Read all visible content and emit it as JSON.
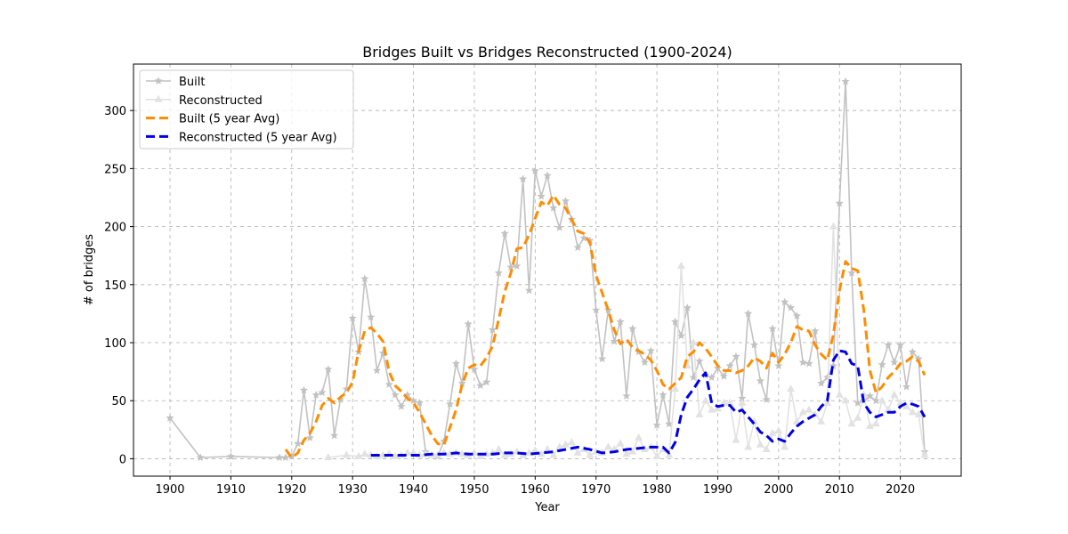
{
  "chart_data": {
    "type": "line",
    "title": "Bridges Built vs Bridges Reconstructed (1900-2024)",
    "xlabel": "Year",
    "ylabel": "# of bridges",
    "xlim": [
      1894,
      2030
    ],
    "ylim": [
      -15,
      340
    ],
    "xticks": [
      1900,
      1910,
      1920,
      1930,
      1940,
      1950,
      1960,
      1970,
      1980,
      1990,
      2000,
      2010,
      2020
    ],
    "yticks": [
      0,
      50,
      100,
      150,
      200,
      250,
      300
    ],
    "grid": true,
    "legend_position": "top-left",
    "series": [
      {
        "name": "Built",
        "style": "solid",
        "marker": "star",
        "color": "#c2c2c2",
        "x": [
          1900,
          1905,
          1910,
          1918,
          1919,
          1920,
          1921,
          1922,
          1923,
          1924,
          1925,
          1926,
          1927,
          1928,
          1929,
          1930,
          1931,
          1932,
          1933,
          1934,
          1935,
          1936,
          1937,
          1938,
          1939,
          1940,
          1941,
          1942,
          1943,
          1944,
          1945,
          1946,
          1947,
          1948,
          1949,
          1950,
          1951,
          1952,
          1953,
          1954,
          1955,
          1956,
          1957,
          1958,
          1959,
          1960,
          1961,
          1962,
          1963,
          1964,
          1965,
          1966,
          1967,
          1968,
          1969,
          1970,
          1971,
          1972,
          1973,
          1974,
          1975,
          1976,
          1977,
          1978,
          1979,
          1980,
          1981,
          1982,
          1983,
          1984,
          1985,
          1986,
          1987,
          1988,
          1989,
          1990,
          1991,
          1992,
          1993,
          1994,
          1995,
          1996,
          1997,
          1998,
          1999,
          2000,
          2001,
          2002,
          2003,
          2004,
          2005,
          2006,
          2007,
          2008,
          2009,
          2010,
          2011,
          2012,
          2013,
          2014,
          2015,
          2016,
          2017,
          2018,
          2019,
          2020,
          2021,
          2022,
          2023,
          2024
        ],
        "y": [
          35,
          1,
          2,
          1,
          1,
          2,
          13,
          59,
          18,
          55,
          57,
          77,
          20,
          51,
          60,
          121,
          92,
          155,
          122,
          76,
          91,
          64,
          55,
          45,
          55,
          50,
          48,
          6,
          3,
          2,
          15,
          47,
          82,
          65,
          116,
          77,
          63,
          66,
          111,
          160,
          194,
          165,
          166,
          241,
          145,
          248,
          226,
          244,
          216,
          199,
          222,
          206,
          182,
          190,
          188,
          128,
          86,
          128,
          101,
          118,
          54,
          112,
          92,
          83,
          93,
          29,
          55,
          30,
          118,
          106,
          130,
          70,
          84,
          72,
          70,
          78,
          71,
          80,
          88,
          52,
          125,
          98,
          67,
          51,
          112,
          80,
          135,
          130,
          123,
          83,
          82,
          110,
          65,
          70,
          80,
          220,
          325,
          160,
          48,
          50,
          54,
          50,
          81,
          98,
          83,
          98,
          62,
          92,
          86,
          6
        ]
      },
      {
        "name": "Reconstructed",
        "style": "solid",
        "marker": "triangle",
        "color": "#e2e2e2",
        "x": [
          1926,
          1929,
          1931,
          1932,
          1933,
          1934,
          1935,
          1936,
          1937,
          1938,
          1939,
          1940,
          1941,
          1942,
          1943,
          1944,
          1945,
          1946,
          1947,
          1948,
          1949,
          1950,
          1951,
          1952,
          1953,
          1954,
          1955,
          1956,
          1957,
          1958,
          1959,
          1960,
          1961,
          1962,
          1963,
          1964,
          1965,
          1966,
          1967,
          1968,
          1969,
          1970,
          1971,
          1972,
          1973,
          1974,
          1975,
          1976,
          1977,
          1978,
          1979,
          1980,
          1981,
          1982,
          1983,
          1984,
          1985,
          1986,
          1987,
          1988,
          1989,
          1990,
          1991,
          1992,
          1993,
          1994,
          1995,
          1996,
          1997,
          1998,
          1999,
          2000,
          2001,
          2002,
          2003,
          2004,
          2005,
          2006,
          2007,
          2008,
          2009,
          2010,
          2011,
          2012,
          2013,
          2014,
          2015,
          2016,
          2017,
          2018,
          2019,
          2020,
          2021,
          2022,
          2023,
          2024
        ],
        "y": [
          1,
          3,
          2,
          4,
          3,
          2,
          3,
          4,
          2,
          3,
          5,
          5,
          3,
          4,
          3,
          3,
          5,
          4,
          5,
          4,
          3,
          5,
          2,
          4,
          5,
          8,
          3,
          4,
          6,
          3,
          5,
          7,
          4,
          8,
          3,
          10,
          12,
          14,
          5,
          8,
          3,
          6,
          5,
          10,
          8,
          13,
          4,
          6,
          18,
          8,
          10,
          2,
          8,
          3,
          60,
          166,
          80,
          100,
          38,
          50,
          42,
          43,
          48,
          48,
          16,
          48,
          10,
          32,
          12,
          8,
          22,
          24,
          10,
          60,
          32,
          40,
          42,
          38,
          32,
          48,
          200,
          55,
          50,
          30,
          35,
          55,
          28,
          30,
          50,
          42,
          55,
          48,
          45,
          40,
          38,
          3
        ]
      },
      {
        "name": "Built (5 year Avg)",
        "style": "dashed",
        "marker": "none",
        "color": "#ff8c00",
        "x": [
          1919,
          1920,
          1921,
          1922,
          1923,
          1924,
          1925,
          1926,
          1927,
          1928,
          1929,
          1930,
          1931,
          1932,
          1933,
          1934,
          1935,
          1936,
          1937,
          1938,
          1939,
          1940,
          1941,
          1942,
          1943,
          1944,
          1945,
          1946,
          1947,
          1948,
          1949,
          1950,
          1951,
          1952,
          1953,
          1954,
          1955,
          1956,
          1957,
          1958,
          1959,
          1960,
          1961,
          1962,
          1963,
          1964,
          1965,
          1966,
          1967,
          1968,
          1969,
          1970,
          1971,
          1972,
          1973,
          1974,
          1975,
          1976,
          1977,
          1978,
          1979,
          1980,
          1981,
          1982,
          1983,
          1984,
          1985,
          1986,
          1987,
          1988,
          1989,
          1990,
          1991,
          1992,
          1993,
          1994,
          1995,
          1996,
          1997,
          1998,
          1999,
          2000,
          2001,
          2002,
          2003,
          2004,
          2005,
          2006,
          2007,
          2008,
          2009,
          2010,
          2011,
          2012,
          2013,
          2014,
          2015,
          2016,
          2017,
          2018,
          2019,
          2020,
          2021,
          2022,
          2023,
          2024
        ],
        "y": [
          8,
          1,
          5,
          16,
          22,
          32,
          46,
          52,
          48,
          53,
          57,
          66,
          93,
          110,
          113,
          108,
          101,
          75,
          63,
          58,
          52,
          48,
          40,
          30,
          20,
          13,
          12,
          27,
          42,
          64,
          78,
          81,
          80,
          87,
          97,
          120,
          144,
          160,
          181,
          182,
          193,
          207,
          221,
          218,
          227,
          219,
          216,
          206,
          196,
          194,
          186,
          158,
          143,
          128,
          111,
          99,
          103,
          96,
          93,
          90,
          85,
          76,
          64,
          60,
          65,
          70,
          88,
          92,
          100,
          95,
          88,
          80,
          76,
          76,
          74,
          76,
          80,
          87,
          84,
          78,
          91,
          83,
          90,
          100,
          114,
          111,
          110,
          98,
          90,
          85,
          107,
          145,
          170,
          164,
          162,
          128,
          76,
          57,
          62,
          70,
          75,
          82,
          84,
          88,
          84,
          72
        ]
      },
      {
        "name": "Reconstructed (5 year Avg)",
        "style": "dashed",
        "marker": "none",
        "color": "#0000e6",
        "x": [
          1933,
          1935,
          1937,
          1939,
          1941,
          1943,
          1945,
          1947,
          1949,
          1951,
          1953,
          1955,
          1957,
          1959,
          1961,
          1963,
          1965,
          1967,
          1969,
          1971,
          1973,
          1975,
          1977,
          1979,
          1981,
          1982,
          1983,
          1984,
          1985,
          1986,
          1987,
          1988,
          1989,
          1990,
          1991,
          1992,
          1993,
          1994,
          1995,
          1996,
          1997,
          1998,
          1999,
          2000,
          2001,
          2002,
          2003,
          2004,
          2005,
          2006,
          2007,
          2008,
          2009,
          2010,
          2011,
          2012,
          2013,
          2014,
          2015,
          2016,
          2017,
          2018,
          2019,
          2020,
          2021,
          2022,
          2023,
          2024
        ],
        "y": [
          3,
          3,
          3,
          3,
          3,
          4,
          4,
          5,
          4,
          4,
          4,
          5,
          5,
          4,
          5,
          6,
          8,
          10,
          8,
          5,
          6,
          8,
          9,
          10,
          10,
          5,
          14,
          38,
          53,
          60,
          68,
          74,
          48,
          45,
          46,
          46,
          40,
          42,
          36,
          30,
          23,
          20,
          15,
          17,
          15,
          22,
          28,
          32,
          35,
          38,
          45,
          50,
          85,
          93,
          92,
          82,
          80,
          48,
          40,
          36,
          38,
          40,
          40,
          45,
          48,
          47,
          45,
          36
        ]
      }
    ]
  }
}
